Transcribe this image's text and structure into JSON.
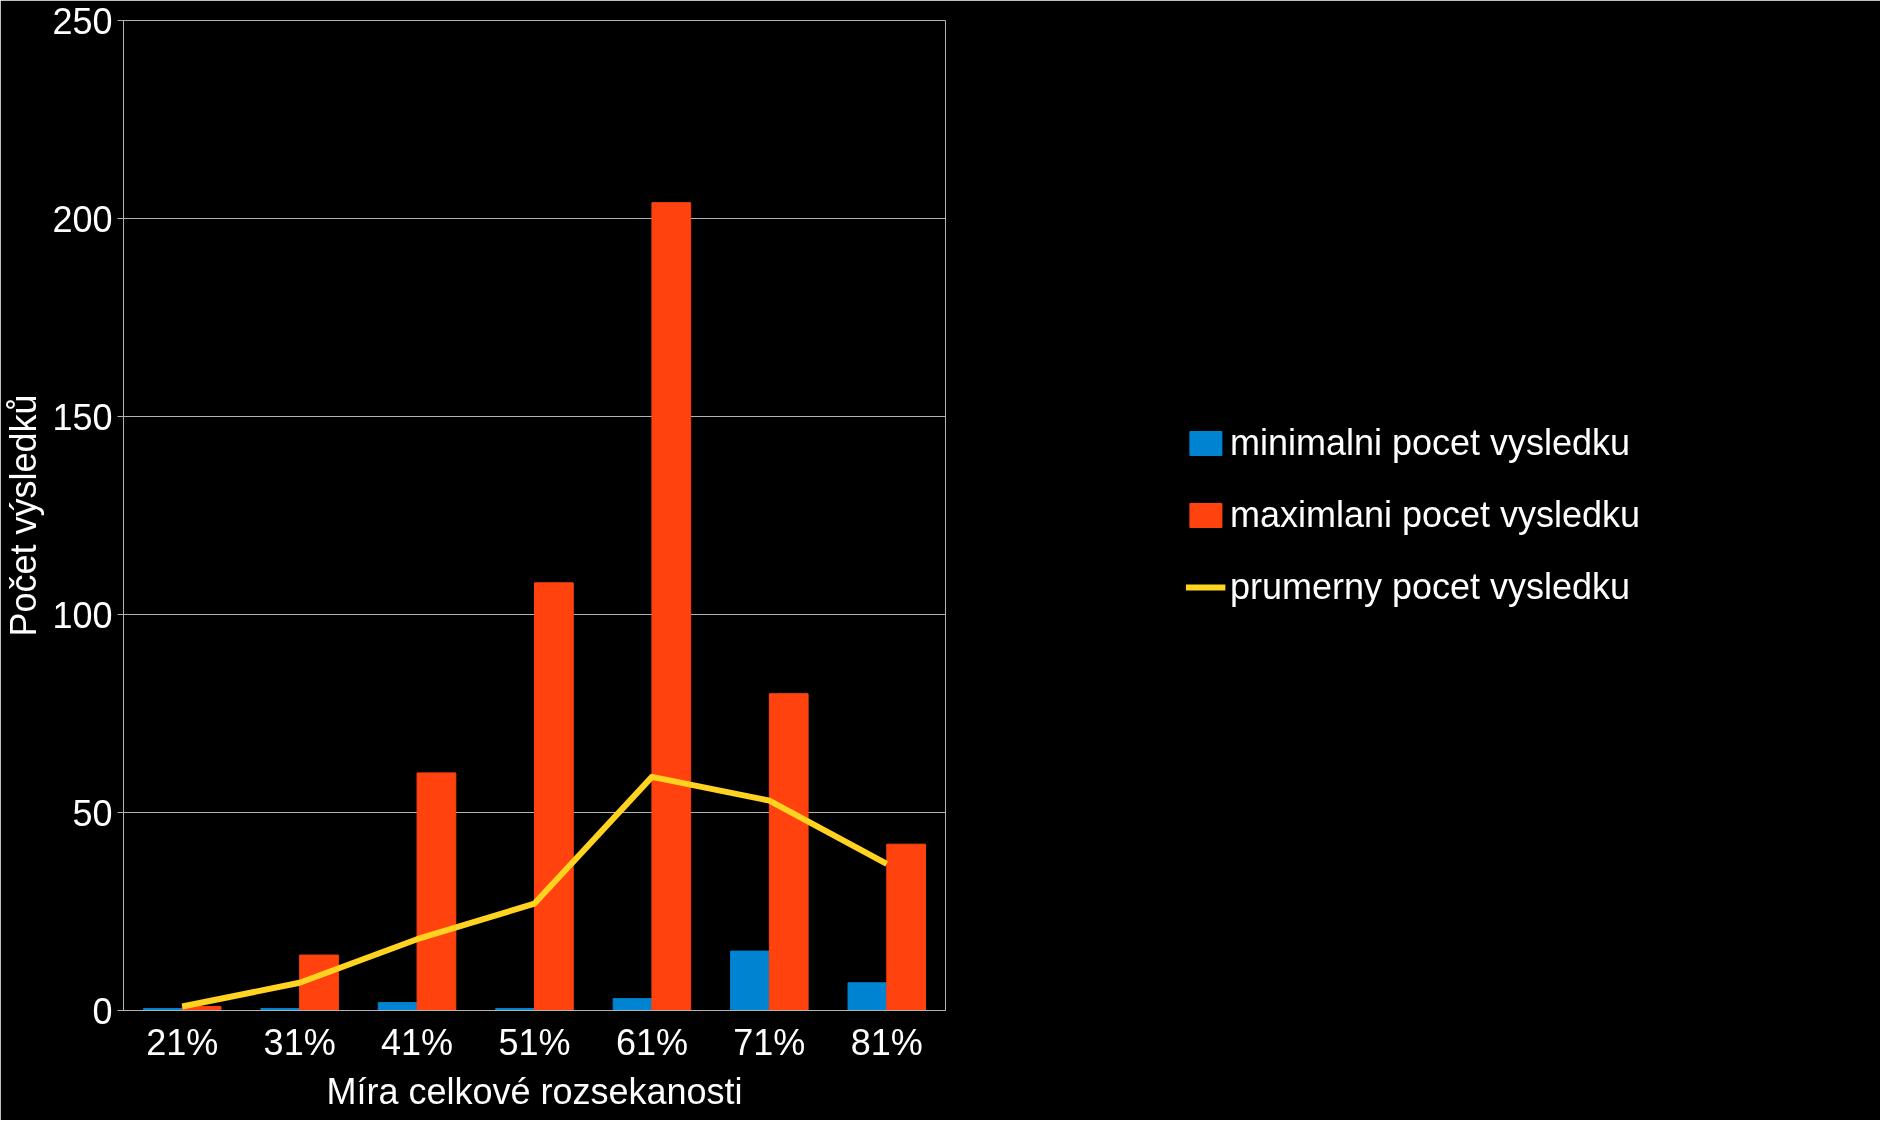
{
  "chart_data": {
    "type": "bar",
    "xlabel": "Míra celkové rozsekanosti",
    "ylabel": "Počet výsledků",
    "categories": [
      "21%",
      "31%",
      "41%",
      "51%",
      "61%",
      "71%",
      "81%"
    ],
    "series": [
      {
        "name": "minimalni pocet vysledku",
        "color": "#0084d1",
        "values": [
          0.5,
          0.5,
          2,
          0.5,
          3,
          15,
          7
        ]
      },
      {
        "name": "maximlani pocet vysledku",
        "color": "#ff420e",
        "values": [
          1,
          14,
          60,
          108,
          204,
          80,
          42
        ]
      },
      {
        "name": "prumerny pocet vysledku",
        "color": "#ffd320",
        "type": "line",
        "values": [
          1,
          7,
          18,
          27,
          59,
          53,
          37
        ]
      }
    ],
    "ylim": [
      0,
      250
    ],
    "yticks": [
      0,
      50,
      100,
      150,
      200,
      250
    ],
    "grid": "y",
    "legend": "right"
  }
}
